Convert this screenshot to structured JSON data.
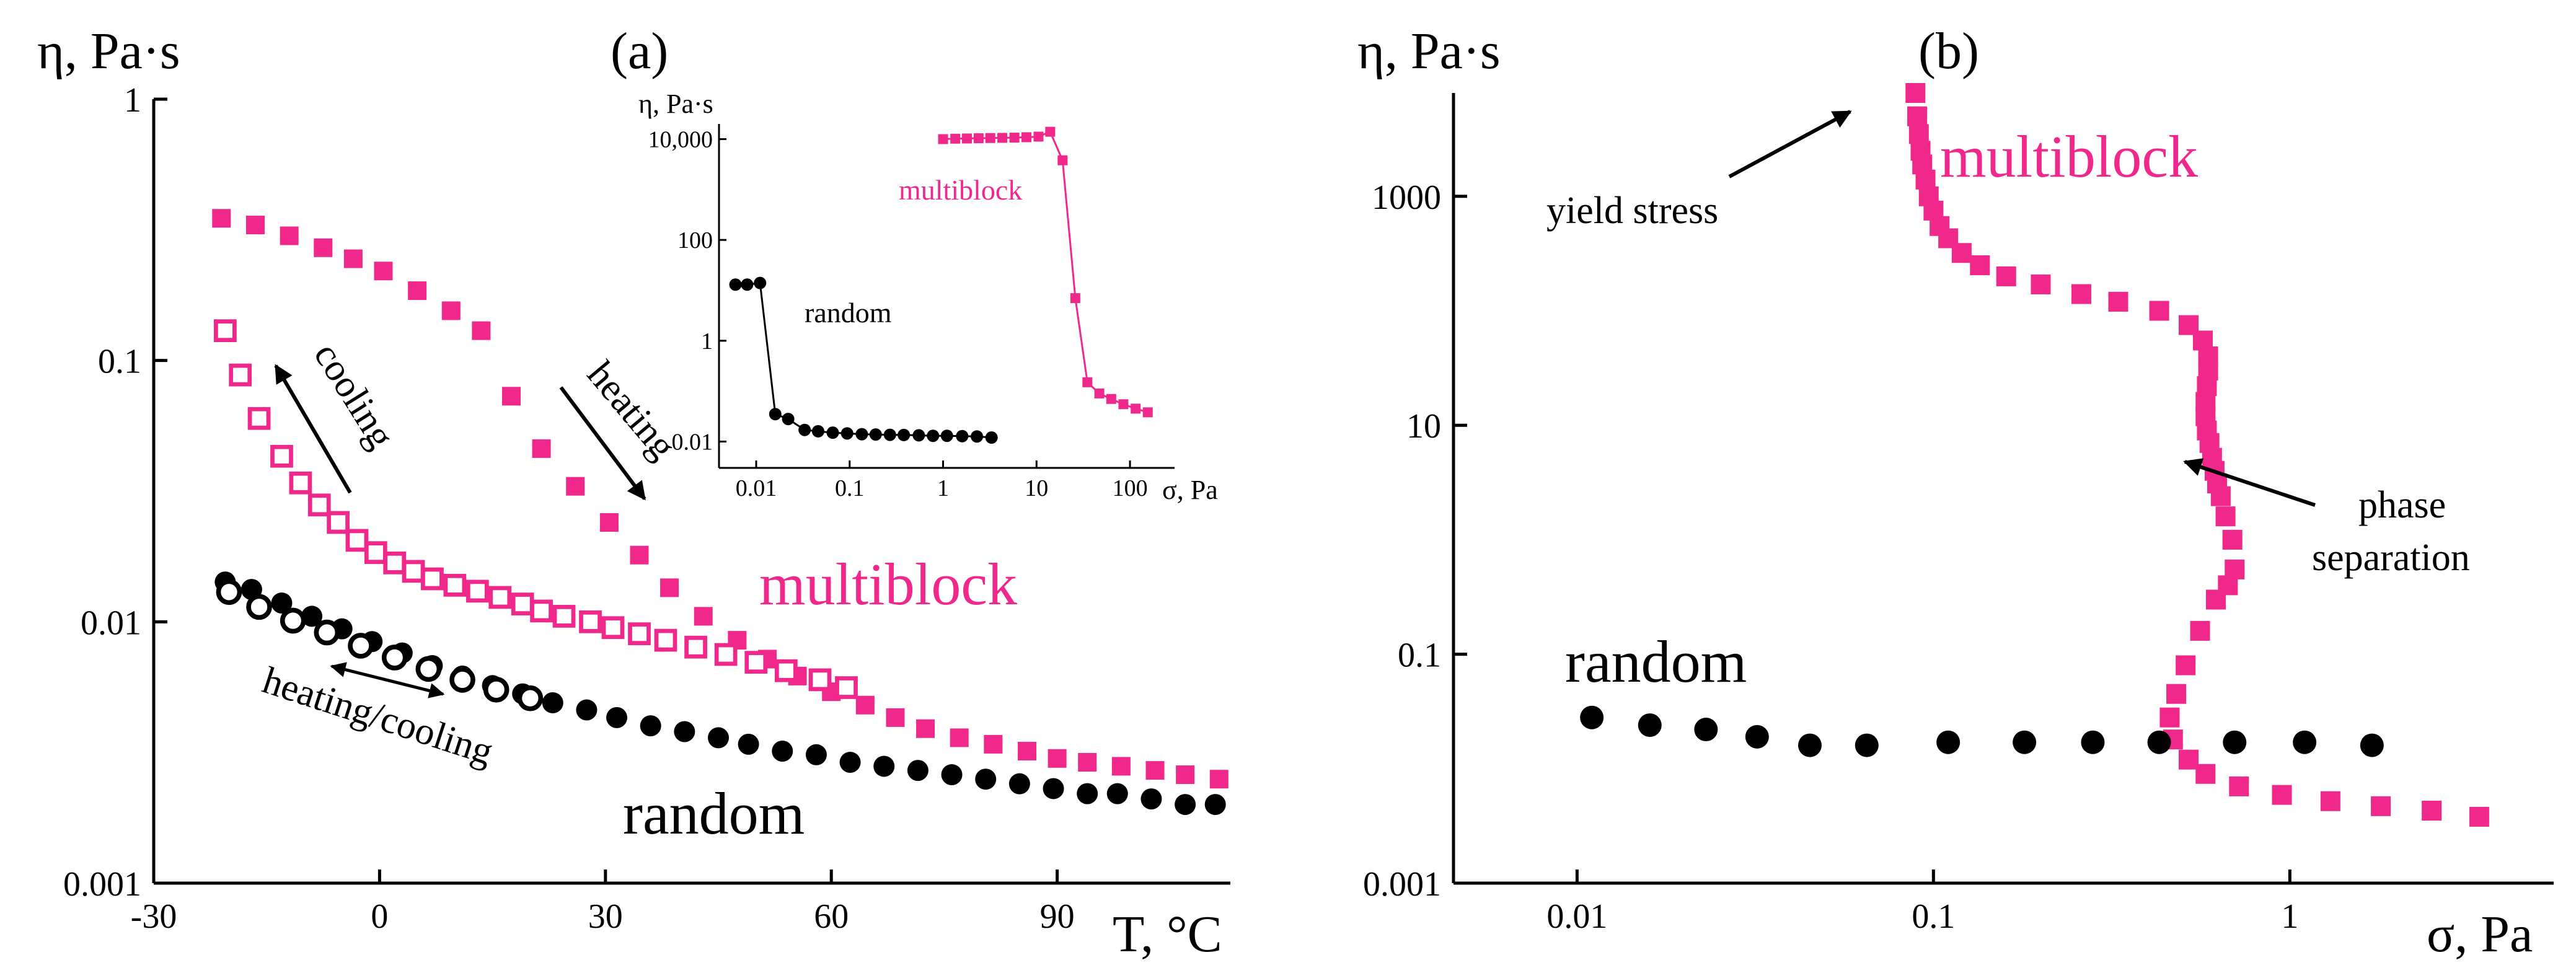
{
  "colors": {
    "multiblock": "#f0288c",
    "random": "#000000",
    "axis": "#000000"
  },
  "chart_data": [
    {
      "id": "a",
      "type": "scatter",
      "panel_label": "(a)",
      "ylabel": "η, Pa·s",
      "xlabel": "T, °C",
      "x_scale": "linear",
      "y_scale": "log",
      "xlim": [
        -30,
        113
      ],
      "ylim": [
        0.001,
        1
      ],
      "x_ticks": [
        -30,
        0,
        30,
        60,
        90
      ],
      "y_ticks": [
        {
          "value": 0.001,
          "label": "0.001"
        },
        {
          "value": 0.01,
          "label": "0.01"
        },
        {
          "value": 0.1,
          "label": "0.1"
        },
        {
          "value": 1,
          "label": "1"
        }
      ],
      "series": [
        {
          "name": "multiblock",
          "process": "heating",
          "marker": "square-filled",
          "color": "#f0288c",
          "x": [
            -21,
            -16.5,
            -12,
            -7.5,
            -3.5,
            0.5,
            5,
            9.5,
            13.5,
            17.5,
            21.5,
            26,
            30.5,
            34.5,
            38.5,
            43,
            47.5,
            51.5,
            55.5,
            60,
            64.5,
            68.5,
            72.5,
            77,
            81.5,
            86,
            90,
            94,
            98.5,
            103,
            107,
            111.5
          ],
          "y": [
            0.35,
            0.33,
            0.3,
            0.27,
            0.245,
            0.22,
            0.185,
            0.155,
            0.13,
            0.073,
            0.046,
            0.033,
            0.024,
            0.018,
            0.0135,
            0.0105,
            0.0085,
            0.0072,
            0.0062,
            0.0054,
            0.0048,
            0.0043,
            0.0039,
            0.0036,
            0.0034,
            0.0032,
            0.003,
            0.0029,
            0.0028,
            0.0027,
            0.0026,
            0.0025
          ]
        },
        {
          "name": "multiblock",
          "process": "cooling",
          "marker": "square-open",
          "color": "#f0288c",
          "x": [
            -20.5,
            -18.5,
            -16,
            -13,
            -10.5,
            -8,
            -5.5,
            -3,
            -0.5,
            2,
            4.5,
            7,
            10,
            13,
            16,
            19,
            21.5,
            24.5,
            28,
            31,
            34.5,
            38,
            42,
            46,
            50,
            54,
            58.5,
            62
          ],
          "y": [
            0.13,
            0.088,
            0.06,
            0.043,
            0.034,
            0.028,
            0.024,
            0.0205,
            0.0184,
            0.0168,
            0.0156,
            0.0146,
            0.0138,
            0.0131,
            0.0124,
            0.0117,
            0.011,
            0.0105,
            0.01,
            0.0095,
            0.009,
            0.0085,
            0.008,
            0.0075,
            0.007,
            0.0065,
            0.006,
            0.0056
          ]
        },
        {
          "name": "random",
          "process": "heating",
          "marker": "circle-filled",
          "color": "#000000",
          "x": [
            -20.5,
            -17,
            -13,
            -9,
            -5,
            -1,
            3,
            7,
            11,
            15,
            19,
            23,
            27.5,
            31.5,
            36,
            40.5,
            45,
            49,
            53.5,
            58,
            62.5,
            67,
            71.5,
            76,
            80.5,
            85,
            89.5,
            94,
            98,
            102.5,
            107,
            111
          ],
          "y": [
            0.0142,
            0.0133,
            0.0118,
            0.0105,
            0.0094,
            0.0084,
            0.0076,
            0.0068,
            0.0062,
            0.0057,
            0.0053,
            0.0049,
            0.0046,
            0.0043,
            0.004,
            0.0038,
            0.0036,
            0.0034,
            0.0032,
            0.0031,
            0.0029,
            0.0028,
            0.0027,
            0.0026,
            0.0025,
            0.0024,
            0.0023,
            0.0022,
            0.0022,
            0.0021,
            0.002,
            0.002
          ]
        },
        {
          "name": "random",
          "process": "cooling",
          "marker": "circle-open",
          "color": "#000000",
          "x": [
            -20,
            -16,
            -11.5,
            -7,
            -2.5,
            2,
            6.5,
            11,
            15.5,
            20
          ],
          "y": [
            0.013,
            0.0114,
            0.0101,
            0.0091,
            0.0081,
            0.0073,
            0.0066,
            0.006,
            0.0055,
            0.0051
          ]
        }
      ],
      "labels": {
        "multiblock": "multiblock",
        "random": "random",
        "cooling": "cooling",
        "heating": "heating",
        "heating_cooling": "heating/cooling"
      },
      "inset": {
        "type": "line",
        "ylabel": "η, Pa·s",
        "xlabel": "σ, Pa",
        "x_scale": "log",
        "y_scale": "log",
        "xlim": [
          0.004,
          300
        ],
        "ylim": [
          0.003,
          20000
        ],
        "x_ticks": [
          {
            "value": 0.01,
            "label": "0.01"
          },
          {
            "value": 0.1,
            "label": "0.1"
          },
          {
            "value": 1,
            "label": "1"
          },
          {
            "value": 10,
            "label": "10"
          },
          {
            "value": 100,
            "label": "100"
          }
        ],
        "y_ticks": [
          {
            "value": 0.01,
            "label": "0.01"
          },
          {
            "value": 1,
            "label": "1"
          },
          {
            "value": 100,
            "label": "100"
          },
          {
            "value": 10000,
            "label": "10,000"
          }
        ],
        "series": [
          {
            "name": "random",
            "marker": "circle",
            "color": "#000000",
            "x": [
              0.006,
              0.008,
              0.011,
              0.016,
              0.022,
              0.033,
              0.046,
              0.066,
              0.094,
              0.135,
              0.19,
              0.27,
              0.38,
              0.55,
              0.78,
              1.1,
              1.6,
              2.3,
              3.3
            ],
            "y": [
              13,
              13,
              14,
              0.035,
              0.028,
              0.017,
              0.016,
              0.015,
              0.0145,
              0.014,
              0.0138,
              0.0136,
              0.0135,
              0.0133,
              0.013,
              0.013,
              0.0128,
              0.0126,
              0.012
            ]
          },
          {
            "name": "multiblock",
            "marker": "square",
            "color": "#f0288c",
            "x": [
              1.0,
              1.35,
              1.8,
              2.4,
              3.2,
              4.3,
              5.8,
              7.8,
              10.5,
              14,
              19,
              26,
              35,
              47,
              63,
              85,
              115,
              155
            ],
            "y": [
              10000,
              10200,
              10300,
              10400,
              10500,
              10600,
              10700,
              10900,
              11200,
              14000,
              3800,
              7,
              0.15,
              0.09,
              0.07,
              0.055,
              0.045,
              0.038
            ]
          }
        ],
        "labels": {
          "random": "random",
          "multiblock": "multiblock"
        }
      }
    },
    {
      "id": "b",
      "type": "scatter",
      "panel_label": "(b)",
      "ylabel": "η, Pa·s",
      "xlabel": "σ, Pa",
      "x_scale": "log",
      "y_scale": "log",
      "xlim": [
        0.0045,
        5.5
      ],
      "ylim": [
        0.001,
        8000
      ],
      "x_ticks": [
        {
          "value": 0.01,
          "label": "0.01"
        },
        {
          "value": 0.1,
          "label": "0.1"
        },
        {
          "value": 1,
          "label": "1"
        }
      ],
      "y_ticks": [
        {
          "value": 0.001,
          "label": "0.001"
        },
        {
          "value": 0.1,
          "label": "0.1"
        },
        {
          "value": 10,
          "label": "10"
        },
        {
          "value": 1000,
          "label": "1000"
        }
      ],
      "series": [
        {
          "name": "multiblock",
          "marker": "square-filled",
          "color": "#f0288c",
          "x": [
            0.089,
            0.09,
            0.091,
            0.092,
            0.093,
            0.095,
            0.097,
            0.1,
            0.104,
            0.11,
            0.12,
            0.135,
            0.16,
            0.2,
            0.26,
            0.33,
            0.43,
            0.52,
            0.57,
            0.59,
            0.59,
            0.585,
            0.58,
            0.58,
            0.585,
            0.595,
            0.605,
            0.615,
            0.625,
            0.64,
            0.66,
            0.69,
            0.7,
            0.67,
            0.62,
            0.56,
            0.51,
            0.48,
            0.46,
            0.47,
            0.52,
            0.58,
            0.72,
            0.95,
            1.3,
            1.8,
            2.5,
            3.4
          ],
          "y": [
            8000,
            5000,
            3500,
            2500,
            1900,
            1400,
            1000,
            750,
            550,
            430,
            320,
            250,
            200,
            170,
            140,
            120,
            100,
            75,
            55,
            40,
            30,
            22,
            16,
            12,
            9,
            7,
            5.2,
            4,
            3.1,
            2.4,
            1.6,
            1.0,
            0.55,
            0.4,
            0.3,
            0.16,
            0.08,
            0.045,
            0.028,
            0.018,
            0.012,
            0.009,
            0.007,
            0.0059,
            0.0052,
            0.0047,
            0.0043,
            0.0038
          ]
        },
        {
          "name": "random",
          "marker": "circle-filled",
          "color": "#000000",
          "x": [
            0.011,
            0.016,
            0.023,
            0.032,
            0.045,
            0.065,
            0.11,
            0.18,
            0.28,
            0.43,
            0.7,
            1.1,
            1.7
          ],
          "y": [
            0.028,
            0.024,
            0.022,
            0.019,
            0.016,
            0.016,
            0.017,
            0.017,
            0.017,
            0.017,
            0.017,
            0.017,
            0.016
          ]
        }
      ],
      "labels": {
        "multiblock": "multiblock",
        "random": "random",
        "yield_stress": "yield stress",
        "phase": "phase",
        "separation": "separation"
      }
    }
  ]
}
